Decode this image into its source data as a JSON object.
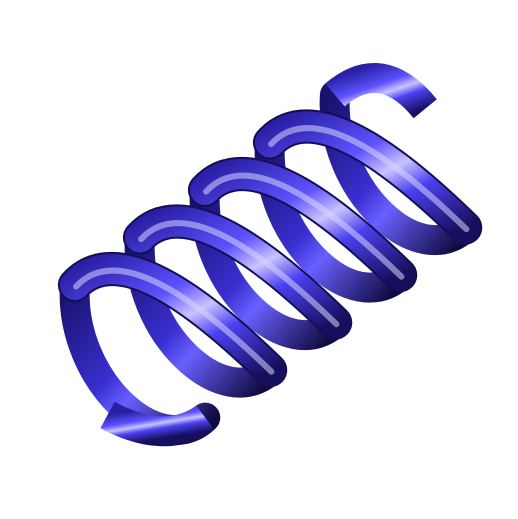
{
  "scene": {
    "subject": "coil-spring",
    "turns": 5,
    "colors": {
      "background": "#ffffff",
      "highlight": "#c9c3ff",
      "light": "#6b60ff",
      "base": "#3f34e8",
      "shadow": "#1e1678",
      "deep": "#0e0a3e"
    }
  }
}
